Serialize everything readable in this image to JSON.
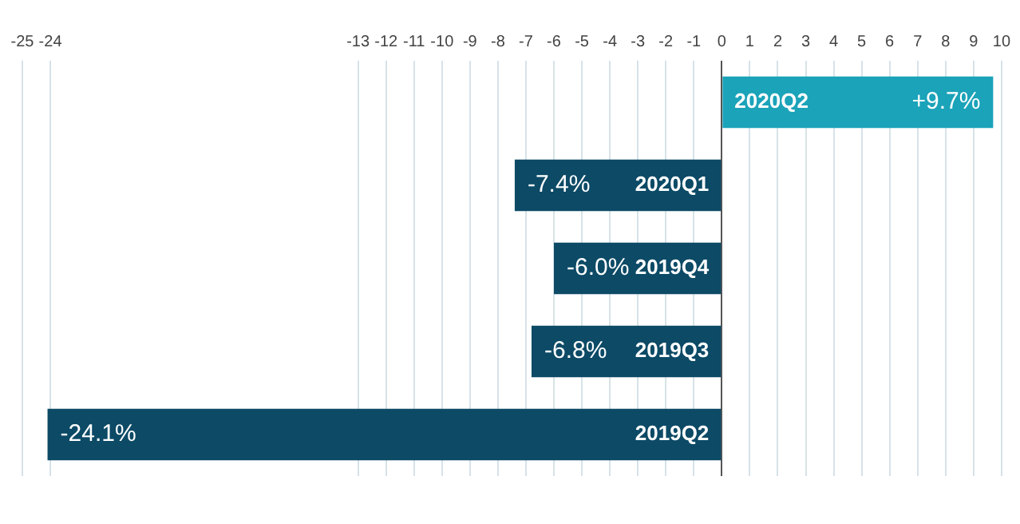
{
  "chart_data": {
    "type": "bar",
    "orientation": "horizontal",
    "categories": [
      "2020Q2",
      "2020Q1",
      "2019Q4",
      "2019Q3",
      "2019Q2"
    ],
    "values": [
      9.7,
      -7.4,
      -6.0,
      -6.8,
      -24.1
    ],
    "value_labels": [
      "+9.7%",
      "-7.4%",
      "-6.0%",
      "-6.8%",
      "-24.1%"
    ],
    "colors": [
      "#1ba3b9",
      "#0c4a66",
      "#0c4a66",
      "#0c4a66",
      "#0c4a66"
    ],
    "xlim": [
      -25,
      10
    ],
    "xticks": [
      -25,
      -24,
      -13,
      -12,
      -11,
      -10,
      -9,
      -8,
      -7,
      -6,
      -5,
      -4,
      -3,
      -2,
      -1,
      0,
      1,
      2,
      3,
      4,
      5,
      6,
      7,
      8,
      9,
      10
    ],
    "grid": "x",
    "legend": false
  }
}
